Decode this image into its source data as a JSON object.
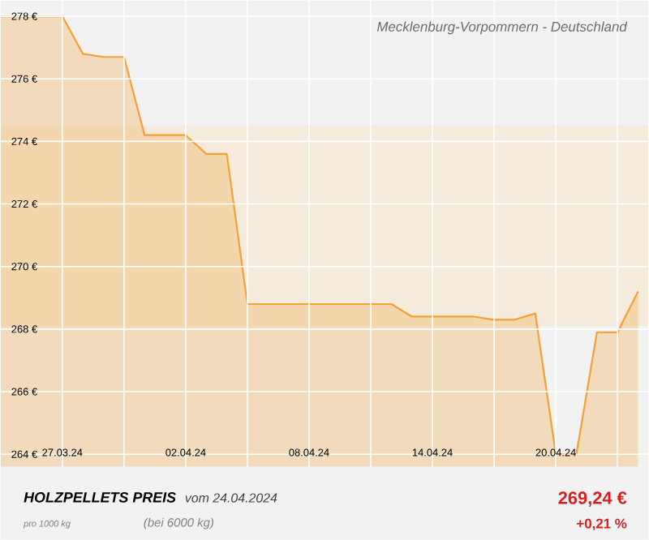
{
  "chart_data": {
    "type": "area",
    "title": "Mecklenburg-Vorpommern - Deutschland",
    "x": [
      "2024-03-24",
      "2024-03-25",
      "2024-03-26",
      "2024-03-27",
      "2024-03-28",
      "2024-03-29",
      "2024-03-30",
      "2024-03-31",
      "2024-04-01",
      "2024-04-02",
      "2024-04-03",
      "2024-04-04",
      "2024-04-05",
      "2024-04-06",
      "2024-04-07",
      "2024-04-08",
      "2024-04-09",
      "2024-04-10",
      "2024-04-11",
      "2024-04-12",
      "2024-04-13",
      "2024-04-14",
      "2024-04-15",
      "2024-04-16",
      "2024-04-17",
      "2024-04-18",
      "2024-04-19",
      "2024-04-20",
      "2024-04-21",
      "2024-04-22",
      "2024-04-23",
      "2024-04-24"
    ],
    "series": [
      {
        "color": "#f5a033",
        "values": [
          278,
          278,
          278,
          278,
          276.8,
          276.7,
          276.7,
          274.2,
          274.2,
          274.2,
          273.6,
          273.6,
          268.8,
          268.8,
          268.8,
          268.8,
          268.8,
          268.8,
          268.8,
          268.8,
          268.4,
          268.4,
          268.4,
          268.4,
          268.3,
          268.3,
          268.5,
          264.0,
          264.0,
          267.9,
          267.9,
          269.2
        ]
      }
    ],
    "xlim": [
      "2024-03-24",
      "2024-04-24T12:00"
    ],
    "xticks": [
      {
        "value": "2024-03-27",
        "label": "27.03.24"
      },
      {
        "value": "2024-03-30",
        "label": null
      },
      {
        "value": "2024-04-02",
        "label": "02.04.24"
      },
      {
        "value": "2024-04-05",
        "label": null
      },
      {
        "value": "2024-04-08",
        "label": "08.04.24"
      },
      {
        "value": "2024-04-11",
        "label": null
      },
      {
        "value": "2024-04-14",
        "label": "14.04.24"
      },
      {
        "value": "2024-04-17",
        "label": null
      },
      {
        "value": "2024-04-20",
        "label": "20.04.24"
      },
      {
        "value": "2024-04-23",
        "label": null
      }
    ],
    "ylim": [
      263.6,
      278.5
    ],
    "yticks": [
      {
        "value": 264,
        "label": "264 €"
      },
      {
        "value": 266,
        "label": "266 €"
      },
      {
        "value": 268,
        "label": "268 €"
      },
      {
        "value": 270,
        "label": "270 €"
      },
      {
        "value": 272,
        "label": "272 €"
      },
      {
        "value": 274,
        "label": "274 €"
      },
      {
        "value": 276,
        "label": "276 €"
      },
      {
        "value": 278,
        "label": "278 €"
      }
    ],
    "bands": [
      {
        "axis": "y",
        "from": 268.1,
        "to": 274.5,
        "color": "#f4ebdc"
      }
    ],
    "grid": true,
    "annotations": [
      "HOLZPELLETS PREIS",
      "vom 24.04.2024",
      "pro 1000 kg",
      "(bei 6000 kg)",
      "269,24 €",
      "+0,21 %"
    ]
  }
}
